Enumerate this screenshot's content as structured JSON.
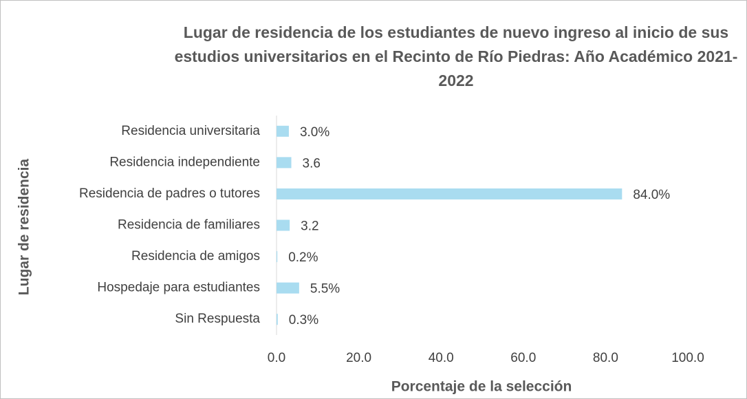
{
  "chart_data": {
    "type": "hbar",
    "title": "Lugar de residencia de los estudiantes de nuevo ingreso al inicio de sus estudios universitarios en el Recinto de Río Piedras: Año Académico 2021-2022",
    "x_label": "Porcentaje de la selección",
    "y_label": "Lugar de residencia",
    "categories": [
      "Residencia universitaria",
      "Residencia independiente",
      "Residencia de padres o tutores",
      "Residencia de familiares",
      "Residencia de amigos",
      "Hospedaje para estudiantes",
      "Sin Respuesta"
    ],
    "values": [
      3.0,
      3.6,
      84.0,
      3.2,
      0.2,
      5.5,
      0.3
    ],
    "value_labels": [
      "3.0%",
      "3.6",
      "84.0%",
      "3.2",
      "0.2%",
      "5.5%",
      "0.3%"
    ],
    "color": "#a9dcf0",
    "xlim": [
      0,
      100
    ],
    "xticks": [
      {
        "value": 0,
        "label": "0.0"
      },
      {
        "value": 20,
        "label": "20.0"
      },
      {
        "value": 40,
        "label": "40.0"
      },
      {
        "value": 60,
        "label": "60.0"
      },
      {
        "value": 80,
        "label": "80.0"
      },
      {
        "value": 100,
        "label": "100.0"
      }
    ],
    "grid": false
  }
}
